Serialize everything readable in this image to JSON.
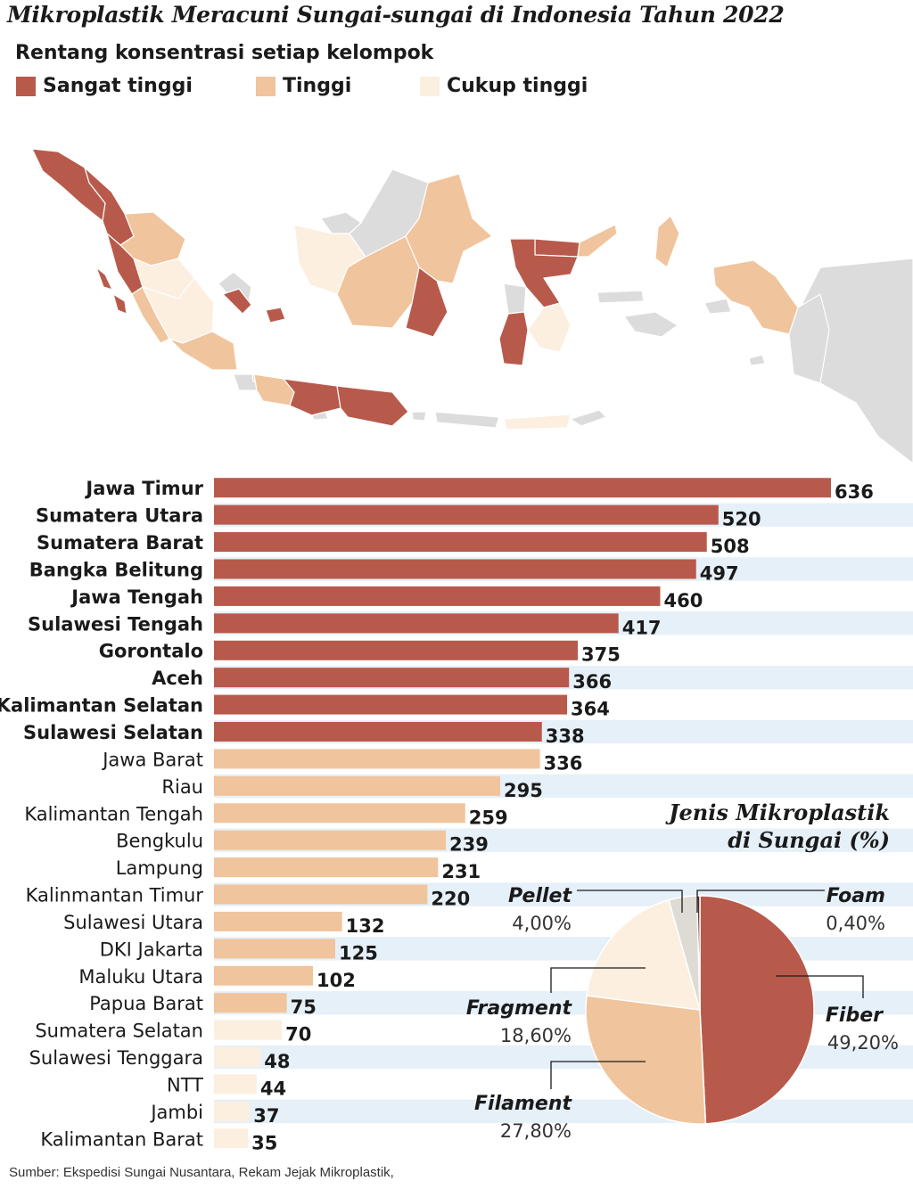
{
  "title": "Mikroplastik Meracuni Sungai-sungai di Indonesia Tahun 2022",
  "legend": {
    "title": "Rentang konsentrasi setiap kelompok",
    "items": [
      {
        "label": "Sangat tinggi",
        "color": "#b85a4b"
      },
      {
        "label": "Tinggi",
        "color": "#f0c49c"
      },
      {
        "label": "Cukup tinggi",
        "color": "#fcefe0"
      }
    ]
  },
  "colors": {
    "sangat_tinggi": "#b85a4b",
    "tinggi": "#f0c49c",
    "cukup_tinggi": "#fcefe0",
    "stripe": "#e6f0f9",
    "map_other": "#dcdcdc"
  },
  "map": {
    "regions": [
      {
        "name": "Aceh",
        "level": "sangat_tinggi"
      },
      {
        "name": "Sumatera Utara",
        "level": "sangat_tinggi"
      },
      {
        "name": "Sumatera Barat",
        "level": "sangat_tinggi"
      },
      {
        "name": "Riau",
        "level": "tinggi"
      },
      {
        "name": "Jambi",
        "level": "cukup_tinggi"
      },
      {
        "name": "Bengkulu",
        "level": "tinggi"
      },
      {
        "name": "Sumatera Selatan",
        "level": "cukup_tinggi"
      },
      {
        "name": "Lampung",
        "level": "tinggi"
      },
      {
        "name": "Bangka Belitung",
        "level": "sangat_tinggi"
      },
      {
        "name": "Jawa Barat",
        "level": "tinggi"
      },
      {
        "name": "Jawa Tengah",
        "level": "sangat_tinggi"
      },
      {
        "name": "Jawa Timur",
        "level": "sangat_tinggi"
      },
      {
        "name": "Kalimantan Barat",
        "level": "cukup_tinggi"
      },
      {
        "name": "Kalimantan Tengah",
        "level": "tinggi"
      },
      {
        "name": "Kalimantan Timur",
        "level": "tinggi"
      },
      {
        "name": "Kalimantan Selatan",
        "level": "sangat_tinggi"
      },
      {
        "name": "Sulawesi Tengah",
        "level": "sangat_tinggi"
      },
      {
        "name": "Gorontalo",
        "level": "sangat_tinggi"
      },
      {
        "name": "Sulawesi Utara",
        "level": "tinggi"
      },
      {
        "name": "Sulawesi Selatan",
        "level": "sangat_tinggi"
      },
      {
        "name": "Sulawesi Tenggara",
        "level": "cukup_tinggi"
      },
      {
        "name": "Maluku Utara",
        "level": "tinggi"
      },
      {
        "name": "Papua Barat",
        "level": "tinggi"
      },
      {
        "name": "NTT",
        "level": "cukup_tinggi"
      }
    ]
  },
  "chart_data": [
    {
      "type": "bar",
      "orientation": "horizontal",
      "categories": [
        "Jawa Timur",
        "Sumatera Utara",
        "Sumatera Barat",
        "Bangka Belitung",
        "Jawa Tengah",
        "Sulawesi Tengah",
        "Gorontalo",
        "Aceh",
        "Kalimantan Selatan",
        "Sulawesi Selatan",
        "Jawa Barat",
        "Riau",
        "Kalimantan Tengah",
        "Bengkulu",
        "Lampung",
        "Kalinmantan Timur",
        "Sulawesi Utara",
        "DKI Jakarta",
        "Maluku Utara",
        "Papua Barat",
        "Sumatera Selatan",
        "Sulawesi Tenggara",
        "NTT",
        "Jambi",
        "Kalimantan Barat"
      ],
      "values": [
        636,
        520,
        508,
        497,
        460,
        417,
        375,
        366,
        364,
        338,
        336,
        295,
        259,
        239,
        231,
        220,
        132,
        125,
        102,
        75,
        70,
        48,
        44,
        37,
        35
      ],
      "groups": [
        "sangat_tinggi",
        "sangat_tinggi",
        "sangat_tinggi",
        "sangat_tinggi",
        "sangat_tinggi",
        "sangat_tinggi",
        "sangat_tinggi",
        "sangat_tinggi",
        "sangat_tinggi",
        "sangat_tinggi",
        "tinggi",
        "tinggi",
        "tinggi",
        "tinggi",
        "tinggi",
        "tinggi",
        "tinggi",
        "tinggi",
        "tinggi",
        "tinggi",
        "cukup_tinggi",
        "cukup_tinggi",
        "cukup_tinggi",
        "cukup_tinggi",
        "cukup_tinggi"
      ],
      "xlim": [
        0,
        636
      ]
    },
    {
      "type": "pie",
      "title": "Jenis Mikroplastik di Sungai (%)",
      "title_lines": [
        "Jenis Mikroplastik",
        "di Sungai (%)"
      ],
      "slices": [
        {
          "label": "Fiber",
          "value": 49.2,
          "value_label": "49,20%",
          "color": "#b85a4b"
        },
        {
          "label": "Filament",
          "value": 27.8,
          "value_label": "27,80%",
          "color": "#f0c49c"
        },
        {
          "label": "Fragment",
          "value": 18.6,
          "value_label": "18,60%",
          "color": "#fcefe0"
        },
        {
          "label": "Pellet",
          "value": 4.0,
          "value_label": "4,00%",
          "color": "#dddbd4"
        },
        {
          "label": "Foam",
          "value": 0.4,
          "value_label": "0,40%",
          "color": "#5a2a22"
        }
      ]
    }
  ],
  "source": "Sumber: Ekspedisi Sungai Nusantara, Rekam Jejak Mikroplastik,"
}
